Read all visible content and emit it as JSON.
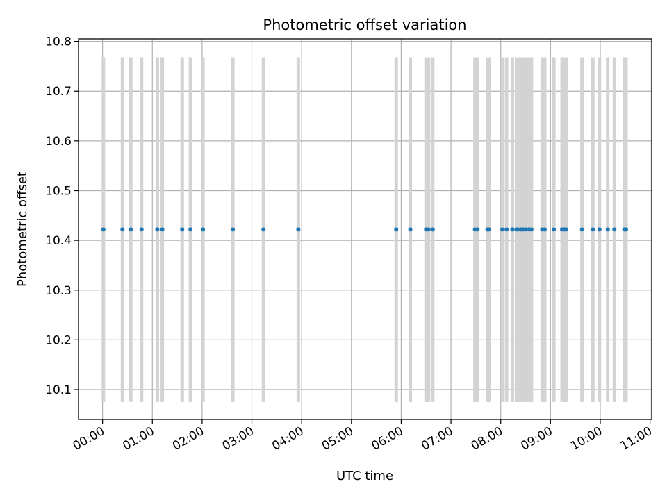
{
  "chart_data": {
    "type": "scatter",
    "title": "Photometric offset variation",
    "xlabel": "UTC time",
    "ylabel": "Photometric offset",
    "grid": true,
    "x_axis": {
      "kind": "time",
      "range": [
        "23:31",
        "11:02"
      ],
      "ticks": [
        "00:00",
        "01:00",
        "02:00",
        "03:00",
        "04:00",
        "05:00",
        "06:00",
        "07:00",
        "08:00",
        "09:00",
        "10:00",
        "11:00"
      ]
    },
    "y_axis": {
      "range": [
        10.04,
        10.805
      ],
      "ticks": [
        10.1,
        10.2,
        10.3,
        10.4,
        10.5,
        10.6,
        10.7,
        10.8
      ]
    },
    "colors": {
      "points": "#1f77b4",
      "error_bars": "#d3d3d3",
      "grid": "#b0b0b0"
    },
    "series": [
      {
        "marker": "dot",
        "y_value": 10.422,
        "error_low": 10.075,
        "error_high": 10.768,
        "x": [
          "00:01",
          "00:24",
          "00:34",
          "00:47",
          "01:06",
          "01:12",
          "01:36",
          "01:46",
          "02:01",
          "02:37",
          "03:14",
          "03:56",
          "05:54",
          "06:11",
          "06:30",
          "06:33",
          "06:38",
          "07:29",
          "07:32",
          "07:44",
          "07:46",
          "08:02",
          "08:07",
          "08:14",
          "08:19",
          "08:21",
          "08:24",
          "08:27",
          "08:30",
          "08:34",
          "08:37",
          "08:50",
          "08:53",
          "09:04",
          "09:14",
          "09:17",
          "09:19",
          "09:38",
          "09:51",
          "09:59",
          "10:09",
          "10:17",
          "10:29",
          "10:31"
        ]
      }
    ]
  }
}
